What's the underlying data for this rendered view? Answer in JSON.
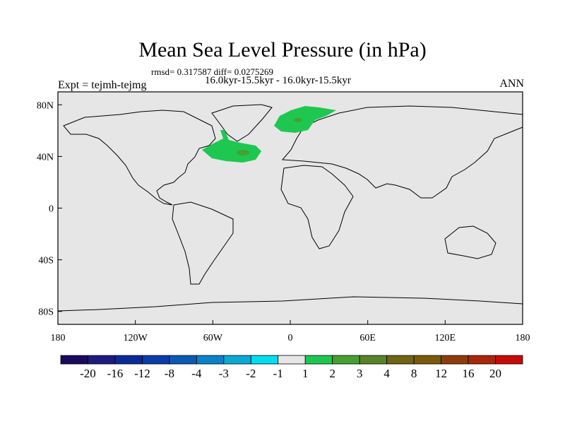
{
  "title": "Mean Sea Level Pressure (in hPa)",
  "stats": "rmsd= 0.317587 diff= 0.0275269",
  "period": "16.0kyr-15.5kyr - 16.0kyr-15.5kyr",
  "expt": "Expt = tejmh-tejmg",
  "season": "ANN",
  "map": {
    "lat_ticks": [
      {
        "value": 80,
        "label": "80N"
      },
      {
        "value": 40,
        "label": "40N"
      },
      {
        "value": 0,
        "label": "0"
      },
      {
        "value": -40,
        "label": "40S"
      },
      {
        "value": -80,
        "label": "80S"
      }
    ],
    "lon_ticks": [
      {
        "value": -180,
        "label": "180"
      },
      {
        "value": -120,
        "label": "120W"
      },
      {
        "value": -60,
        "label": "60W"
      },
      {
        "value": 0,
        "label": "0"
      },
      {
        "value": 60,
        "label": "60E"
      },
      {
        "value": 120,
        "label": "120E"
      },
      {
        "value": 180,
        "label": "180"
      }
    ],
    "lat_range": [
      -90,
      90
    ],
    "lon_range": [
      -180,
      180
    ],
    "background_color": "#e6e6e6"
  },
  "colorbar": {
    "levels": [
      "-20",
      "-16",
      "-12",
      "-8",
      "-4",
      "-3",
      "-2",
      "-1",
      "1",
      "2",
      "3",
      "4",
      "8",
      "12",
      "16",
      "20"
    ],
    "colors": [
      "#1a0a5e",
      "#1e1a80",
      "#0a2a96",
      "#0a3caa",
      "#0a5ab4",
      "#0a82c8",
      "#0aaad2",
      "#00dcf0",
      "#e6e6e6",
      "#1ec850",
      "#46a032",
      "#5a8228",
      "#6e6414",
      "#7a5a0a",
      "#8c3c0a",
      "#aa280a",
      "#c80a0a"
    ]
  }
}
